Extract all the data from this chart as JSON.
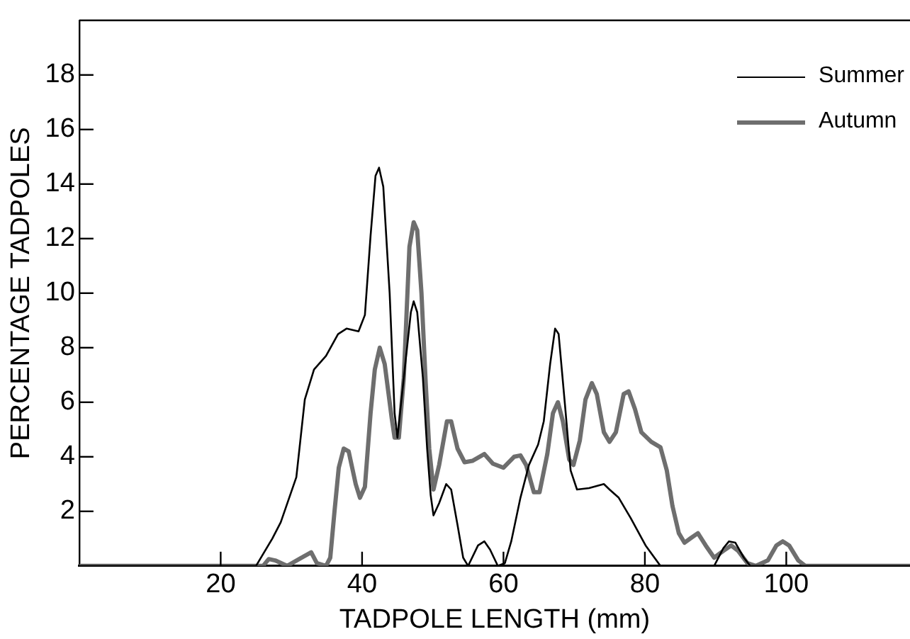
{
  "chart_data": {
    "type": "line",
    "xlabel": "TADPOLE LENGTH (mm)",
    "ylabel": "PERCENTAGE TADPOLES",
    "xlim": [
      0,
      117.5
    ],
    "xticks": [
      20,
      40,
      60,
      80,
      100
    ],
    "ylim": [
      0,
      20
    ],
    "yticks": [
      2,
      4,
      6,
      8,
      10,
      12,
      14,
      16,
      18
    ],
    "grid": false,
    "legend": "top right",
    "marker": "none",
    "line_style": "solid",
    "series": [
      {
        "name": "Summer",
        "color": "#000000",
        "x": [
          0,
          25,
          27.3,
          28.5,
          30.7,
          31.9,
          33.2,
          34.9,
          36.6,
          37.8,
          39.5,
          40.4,
          41.2,
          41.9,
          42.4,
          43,
          43.9,
          44.6,
          45,
          45.9,
          46.9,
          47.3,
          47.8,
          48.6,
          49.2,
          49.7,
          50.1,
          50.9,
          51.9,
          52.6,
          53.5,
          54.3,
          55,
          56.4,
          57.3,
          58.1,
          59.2,
          60.2,
          61.1,
          62.4,
          63.6,
          64.9,
          65.7,
          66.6,
          67.3,
          67.8,
          68.7,
          69.5,
          70.4,
          72.1,
          74.2,
          75,
          76.3,
          78,
          80.1,
          82.2,
          89.8,
          91.1,
          91.9,
          92.8,
          94,
          94.9,
          117.5
        ],
        "values": [
          0,
          0,
          1,
          1.6,
          3.25,
          6.1,
          7.2,
          7.7,
          8.5,
          8.7,
          8.6,
          9.2,
          12.1,
          14.3,
          14.6,
          13.9,
          10,
          5.6,
          4.7,
          6.9,
          9.3,
          9.7,
          9.3,
          6.9,
          4.3,
          2.6,
          1.85,
          2.3,
          3,
          2.8,
          1.5,
          0.3,
          0,
          0.75,
          0.9,
          0.6,
          0,
          0.1,
          0.9,
          2.5,
          3.7,
          4.45,
          5.3,
          7.4,
          8.7,
          8.5,
          5.9,
          3.5,
          2.8,
          2.85,
          3,
          2.8,
          2.5,
          1.75,
          0.75,
          0,
          0,
          0.65,
          0.9,
          0.85,
          0.3,
          0,
          0
        ]
      },
      {
        "name": "Autumn",
        "color": "#6e6e6e",
        "x": [
          0,
          26,
          26.8,
          27.7,
          29.4,
          31.1,
          32.8,
          33.6,
          34.9,
          35.5,
          36.1,
          36.7,
          37.4,
          38.1,
          39.1,
          39.7,
          40.4,
          41.2,
          41.8,
          42.5,
          43.2,
          44.2,
          44.6,
          45.2,
          45.9,
          46.7,
          47.3,
          47.8,
          48.4,
          49,
          49.5,
          50.1,
          50.9,
          52,
          52.6,
          53.5,
          54.5,
          55.6,
          57.3,
          58.5,
          60,
          61.5,
          62.4,
          63.2,
          64.3,
          65.1,
          66.2,
          67,
          67.7,
          68.4,
          69.3,
          69.9,
          70.8,
          71.6,
          72.5,
          73.2,
          74.2,
          75,
          75.9,
          77,
          77.7,
          78.6,
          79.5,
          80.9,
          82.2,
          83.1,
          83.9,
          84.8,
          85.6,
          86.4,
          87.5,
          88.6,
          89.8,
          91.1,
          92.2,
          93.2,
          94.5,
          95.7,
          97.4,
          98.6,
          99.5,
          100.4,
          101.7,
          102.7,
          117.5
        ],
        "values": [
          0,
          0,
          0.25,
          0.2,
          0,
          0.25,
          0.5,
          0.1,
          0,
          0.3,
          2,
          3.6,
          4.3,
          4.2,
          3,
          2.5,
          2.9,
          5.6,
          7.2,
          8,
          7.4,
          5.4,
          4.7,
          4.7,
          6.9,
          11.7,
          12.6,
          12.3,
          10,
          6.7,
          4.3,
          2.8,
          3.7,
          5.3,
          5.3,
          4.3,
          3.8,
          3.85,
          4.1,
          3.75,
          3.6,
          4,
          4.05,
          3.7,
          2.7,
          2.7,
          4.1,
          5.6,
          6,
          5.3,
          3.9,
          3.7,
          4.6,
          6.1,
          6.7,
          6.3,
          4.9,
          4.55,
          4.9,
          6.3,
          6.4,
          5.75,
          4.9,
          4.55,
          4.35,
          3.5,
          2.2,
          1.2,
          0.85,
          1,
          1.2,
          0.75,
          0.3,
          0.55,
          0.75,
          0.55,
          0.1,
          0,
          0.2,
          0.75,
          0.9,
          0.75,
          0.2,
          0,
          0
        ]
      }
    ]
  }
}
